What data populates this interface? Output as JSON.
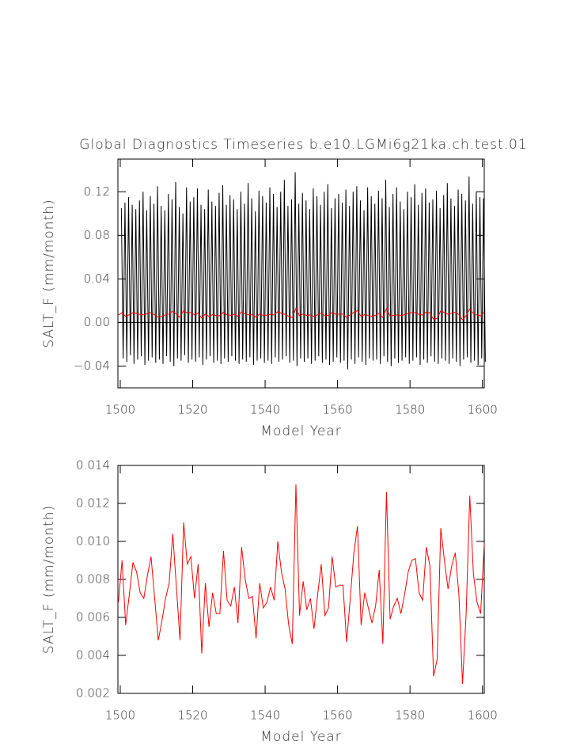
{
  "chart_data": [
    {
      "type": "line",
      "title": "Global Diagnostics Timeseries b.e10.LGMi6g21ka.ch.test.01",
      "xlabel": "Model Year",
      "ylabel": "SALT_F (mm/month)",
      "xlim": [
        1499.35,
        1600.5
      ],
      "xticks": [
        1500,
        1520,
        1540,
        1560,
        1580,
        1600
      ],
      "ylim": [
        -0.06,
        0.15
      ],
      "yticks": [
        {
          "value": -0.04,
          "label": "−0.04"
        },
        {
          "value": 0,
          "label": "0.00"
        },
        0.04,
        0.08,
        0.12
      ],
      "series": [
        {
          "color": "#000000",
          "x": [
            1500.3,
            1500.8,
            1501.3,
            1501.8,
            1502.3,
            1502.8,
            1503.3,
            1503.8,
            1504.3,
            1504.8,
            1505.3,
            1505.8,
            1506.3,
            1506.8,
            1507.3,
            1507.8,
            1508.3,
            1508.8,
            1509.3,
            1509.8,
            1510.3,
            1510.8,
            1511.3,
            1511.8,
            1512.3,
            1512.8,
            1513.3,
            1513.8,
            1514.3,
            1514.8,
            1515.3,
            1515.8,
            1516.3,
            1516.8,
            1517.3,
            1517.8,
            1518.3,
            1518.8,
            1519.3,
            1519.8,
            1520.3,
            1520.8,
            1521.3,
            1521.8,
            1522.3,
            1522.8,
            1523.3,
            1523.8,
            1524.3,
            1524.8,
            1525.3,
            1525.8,
            1526.3,
            1526.8,
            1527.3,
            1527.8,
            1528.3,
            1528.8,
            1529.3,
            1529.8,
            1530.3,
            1530.8,
            1531.3,
            1531.8,
            1532.3,
            1532.8,
            1533.3,
            1533.8,
            1534.3,
            1534.8,
            1535.3,
            1535.8,
            1536.3,
            1536.8,
            1537.3,
            1537.8,
            1538.3,
            1538.8,
            1539.3,
            1539.8,
            1540.3,
            1540.8,
            1541.3,
            1541.8,
            1542.3,
            1542.8,
            1543.3,
            1543.8,
            1544.3,
            1544.8,
            1545.3,
            1545.8,
            1546.3,
            1546.8,
            1547.3,
            1547.8,
            1548.3,
            1548.8,
            1549.3,
            1549.8,
            1550.3,
            1550.8,
            1551.3,
            1551.8,
            1552.3,
            1552.8,
            1553.3,
            1553.8,
            1554.3,
            1554.8,
            1555.3,
            1555.8,
            1556.3,
            1556.8,
            1557.3,
            1557.8,
            1558.3,
            1558.8,
            1559.3,
            1559.8,
            1560.3,
            1560.8,
            1561.3,
            1561.8,
            1562.3,
            1562.8,
            1563.3,
            1563.8,
            1564.3,
            1564.8,
            1565.3,
            1565.8,
            1566.3,
            1566.8,
            1567.3,
            1567.8,
            1568.3,
            1568.8,
            1569.3,
            1569.8,
            1570.3,
            1570.8,
            1571.3,
            1571.8,
            1572.3,
            1572.8,
            1573.3,
            1573.8,
            1574.3,
            1574.8,
            1575.3,
            1575.8,
            1576.3,
            1576.8,
            1577.3,
            1577.8,
            1578.3,
            1578.8,
            1579.3,
            1579.8,
            1580.3,
            1580.8,
            1581.3,
            1581.8,
            1582.3,
            1582.8,
            1583.3,
            1583.8,
            1584.3,
            1584.8,
            1585.3,
            1585.8,
            1586.3,
            1586.8,
            1587.3,
            1587.8,
            1588.3,
            1588.8,
            1589.3,
            1589.8,
            1590.3,
            1590.8,
            1591.3,
            1591.8,
            1592.3,
            1592.8,
            1593.3,
            1593.8,
            1594.3,
            1594.8,
            1595.3,
            1595.8,
            1596.3,
            1596.8,
            1597.3,
            1597.8,
            1598.3,
            1598.8,
            1599.3,
            1599.8,
            1600.3,
            1600.8
          ],
          "values": [
            0.105,
            -0.033,
            0.11,
            -0.036,
            0.115,
            -0.03,
            0.108,
            -0.038,
            0.104,
            -0.034,
            0.112,
            -0.031,
            0.12,
            -0.039,
            0.103,
            -0.035,
            0.116,
            -0.032,
            0.109,
            -0.037,
            0.125,
            -0.034,
            0.107,
            -0.038,
            0.103,
            -0.031,
            0.118,
            -0.036,
            0.113,
            -0.04,
            0.129,
            -0.033,
            0.106,
            -0.035,
            0.1,
            -0.03,
            0.124,
            -0.037,
            0.111,
            -0.034,
            0.115,
            -0.036,
            0.123,
            -0.032,
            0.108,
            -0.039,
            0.104,
            -0.034,
            0.122,
            -0.031,
            0.111,
            -0.037,
            0.107,
            -0.035,
            0.119,
            -0.038,
            0.126,
            -0.033,
            0.108,
            -0.036,
            0.117,
            -0.031,
            0.113,
            -0.035,
            0.104,
            -0.038,
            0.12,
            -0.034,
            0.109,
            -0.036,
            0.128,
            -0.032,
            0.114,
            -0.039,
            0.102,
            -0.035,
            0.121,
            -0.033,
            0.116,
            -0.037,
            0.11,
            -0.035,
            0.124,
            -0.038,
            0.118,
            -0.032,
            0.106,
            -0.036,
            0.12,
            -0.034,
            0.131,
            -0.031,
            0.107,
            -0.037,
            0.113,
            -0.035,
            0.138,
            -0.04,
            0.109,
            -0.033,
            0.119,
            -0.036,
            0.112,
            -0.033,
            0.104,
            -0.038,
            0.123,
            -0.035,
            0.116,
            -0.031,
            0.108,
            -0.037,
            0.12,
            -0.034,
            0.127,
            -0.039,
            0.105,
            -0.036,
            0.114,
            -0.032,
            0.118,
            -0.037,
            0.11,
            -0.035,
            0.122,
            -0.043,
            0.107,
            -0.034,
            0.12,
            -0.038,
            0.125,
            -0.032,
            0.112,
            -0.036,
            0.103,
            -0.039,
            0.124,
            -0.033,
            0.116,
            -0.035,
            0.109,
            -0.034,
            0.121,
            -0.038,
            0.114,
            -0.031,
            0.131,
            -0.036,
            0.106,
            -0.04,
            0.118,
            -0.033,
            0.124,
            -0.037,
            0.111,
            -0.035,
            0.104,
            -0.032,
            0.12,
            -0.038,
            0.115,
            -0.035,
            0.127,
            -0.032,
            0.108,
            -0.039,
            0.119,
            -0.034,
            0.123,
            -0.037,
            0.11,
            -0.031,
            0.113,
            -0.036,
            0.121,
            -0.038,
            0.105,
            -0.033,
            0.117,
            -0.035,
            0.128,
            -0.038,
            0.114,
            -0.033,
            0.107,
            -0.036,
            0.122,
            -0.04,
            0.118,
            -0.034,
            0.112,
            -0.032,
            0.134,
            -0.037,
            0.109,
            -0.035,
            0.12,
            -0.039,
            0.115,
            -0.033,
            0.114,
            -0.036
          ]
        },
        {
          "color": "#ff0000",
          "x": [
            1499.5,
            1500.5,
            1501.5,
            1502.5,
            1503.5,
            1504.5,
            1505.5,
            1506.5,
            1507.5,
            1508.5,
            1509.5,
            1510.5,
            1511.5,
            1512.5,
            1513.5,
            1514.5,
            1515.5,
            1516.5,
            1517.5,
            1518.5,
            1519.5,
            1520.5,
            1521.5,
            1522.5,
            1523.5,
            1524.5,
            1525.5,
            1526.5,
            1527.5,
            1528.5,
            1529.5,
            1530.5,
            1531.5,
            1532.5,
            1533.5,
            1534.5,
            1535.5,
            1536.5,
            1537.5,
            1538.5,
            1539.5,
            1540.5,
            1541.5,
            1542.5,
            1543.5,
            1544.5,
            1545.5,
            1546.5,
            1547.5,
            1548.5,
            1549.5,
            1550.5,
            1551.5,
            1552.5,
            1553.5,
            1554.5,
            1555.5,
            1556.5,
            1557.5,
            1558.5,
            1559.5,
            1560.5,
            1561.5,
            1562.5,
            1563.5,
            1564.5,
            1565.5,
            1566.5,
            1567.5,
            1568.5,
            1569.5,
            1570.5,
            1571.5,
            1572.5,
            1573.5,
            1574.5,
            1575.5,
            1576.5,
            1577.5,
            1578.5,
            1579.5,
            1580.5,
            1581.5,
            1582.5,
            1583.5,
            1584.5,
            1585.5,
            1586.5,
            1587.5,
            1588.5,
            1589.5,
            1590.5,
            1591.5,
            1592.5,
            1593.5,
            1594.5,
            1595.5,
            1596.5,
            1597.5,
            1598.5,
            1599.5,
            1600.5
          ],
          "values": [
            0.0068,
            0.009,
            0.0056,
            0.0072,
            0.0089,
            0.0084,
            0.0073,
            0.007,
            0.0082,
            0.0092,
            0.007,
            0.0048,
            0.0058,
            0.007,
            0.0078,
            0.0104,
            0.0076,
            0.0048,
            0.011,
            0.0088,
            0.0092,
            0.007,
            0.0088,
            0.0041,
            0.0078,
            0.0055,
            0.0073,
            0.0062,
            0.0062,
            0.0095,
            0.0069,
            0.0066,
            0.0076,
            0.0057,
            0.0097,
            0.008,
            0.007,
            0.0071,
            0.0049,
            0.0078,
            0.0065,
            0.0068,
            0.0076,
            0.0069,
            0.01,
            0.0084,
            0.0075,
            0.0056,
            0.0046,
            0.013,
            0.0061,
            0.0079,
            0.0064,
            0.007,
            0.0054,
            0.0072,
            0.0088,
            0.0061,
            0.0065,
            0.0092,
            0.0076,
            0.0077,
            0.0077,
            0.0047,
            0.007,
            0.0094,
            0.0108,
            0.0056,
            0.0073,
            0.0065,
            0.0057,
            0.0066,
            0.0085,
            0.0046,
            0.0126,
            0.0059,
            0.0066,
            0.007,
            0.0062,
            0.0072,
            0.0084,
            0.009,
            0.0091,
            0.0073,
            0.0069,
            0.0097,
            0.0087,
            0.0029,
            0.0038,
            0.0107,
            0.009,
            0.0075,
            0.0087,
            0.0094,
            0.0072,
            0.0025,
            0.0062,
            0.0124,
            0.0083,
            0.0068,
            0.0062,
            0.0099
          ]
        }
      ]
    },
    {
      "type": "line",
      "xlabel": "Model Year",
      "ylabel": "SALT_F (mm/month)",
      "xlim": [
        1499.35,
        1600.5
      ],
      "xticks": [
        1500,
        1520,
        1540,
        1560,
        1580,
        1600
      ],
      "ylim": [
        0.002,
        0.014
      ],
      "yticks": [
        0.002,
        0.004,
        0.006,
        0.008,
        {
          "value": 0.01,
          "label": "0.010"
        },
        0.012,
        0.014
      ],
      "series": [
        {
          "color": "#ff0000",
          "x": [
            1499.5,
            1500.5,
            1501.5,
            1502.5,
            1503.5,
            1504.5,
            1505.5,
            1506.5,
            1507.5,
            1508.5,
            1509.5,
            1510.5,
            1511.5,
            1512.5,
            1513.5,
            1514.5,
            1515.5,
            1516.5,
            1517.5,
            1518.5,
            1519.5,
            1520.5,
            1521.5,
            1522.5,
            1523.5,
            1524.5,
            1525.5,
            1526.5,
            1527.5,
            1528.5,
            1529.5,
            1530.5,
            1531.5,
            1532.5,
            1533.5,
            1534.5,
            1535.5,
            1536.5,
            1537.5,
            1538.5,
            1539.5,
            1540.5,
            1541.5,
            1542.5,
            1543.5,
            1544.5,
            1545.5,
            1546.5,
            1547.5,
            1548.5,
            1549.5,
            1550.5,
            1551.5,
            1552.5,
            1553.5,
            1554.5,
            1555.5,
            1556.5,
            1557.5,
            1558.5,
            1559.5,
            1560.5,
            1561.5,
            1562.5,
            1563.5,
            1564.5,
            1565.5,
            1566.5,
            1567.5,
            1568.5,
            1569.5,
            1570.5,
            1571.5,
            1572.5,
            1573.5,
            1574.5,
            1575.5,
            1576.5,
            1577.5,
            1578.5,
            1579.5,
            1580.5,
            1581.5,
            1582.5,
            1583.5,
            1584.5,
            1585.5,
            1586.5,
            1587.5,
            1588.5,
            1589.5,
            1590.5,
            1591.5,
            1592.5,
            1593.5,
            1594.5,
            1595.5,
            1596.5,
            1597.5,
            1598.5,
            1599.5,
            1600.5
          ],
          "values": [
            0.0068,
            0.009,
            0.0056,
            0.0072,
            0.0089,
            0.0084,
            0.0073,
            0.007,
            0.0082,
            0.0092,
            0.007,
            0.0048,
            0.0058,
            0.007,
            0.0078,
            0.0104,
            0.0076,
            0.0048,
            0.011,
            0.0088,
            0.0092,
            0.007,
            0.0088,
            0.0041,
            0.0078,
            0.0055,
            0.0073,
            0.0062,
            0.0062,
            0.0095,
            0.0069,
            0.0066,
            0.0076,
            0.0057,
            0.0097,
            0.008,
            0.007,
            0.0071,
            0.0049,
            0.0078,
            0.0065,
            0.0068,
            0.0076,
            0.0069,
            0.01,
            0.0084,
            0.0075,
            0.0056,
            0.0046,
            0.013,
            0.0061,
            0.0079,
            0.0064,
            0.007,
            0.0054,
            0.0072,
            0.0088,
            0.0061,
            0.0065,
            0.0092,
            0.0076,
            0.0077,
            0.0077,
            0.0047,
            0.007,
            0.0094,
            0.0108,
            0.0056,
            0.0073,
            0.0065,
            0.0057,
            0.0066,
            0.0085,
            0.0046,
            0.0126,
            0.0059,
            0.0066,
            0.007,
            0.0062,
            0.0072,
            0.0084,
            0.009,
            0.0091,
            0.0073,
            0.0069,
            0.0097,
            0.0087,
            0.0029,
            0.0038,
            0.0107,
            0.009,
            0.0075,
            0.0087,
            0.0094,
            0.0072,
            0.0025,
            0.0062,
            0.0124,
            0.0083,
            0.0068,
            0.0062,
            0.0099
          ]
        }
      ]
    }
  ]
}
